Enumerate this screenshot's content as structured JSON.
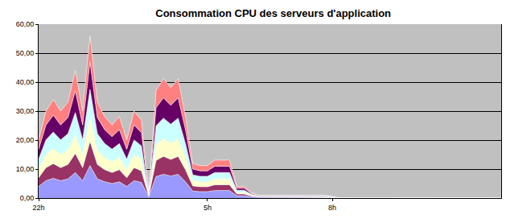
{
  "chart_data": {
    "type": "area",
    "title": "Consommation CPU des serveurs d'application",
    "stacked": true,
    "grid": true,
    "categories": [
      "22h",
      null,
      null,
      null,
      null,
      null,
      null,
      null,
      null,
      null,
      null,
      null,
      null,
      null,
      null,
      null,
      null,
      null,
      null,
      null,
      null,
      null,
      null,
      "5h",
      null,
      null,
      null,
      null,
      null,
      null,
      null,
      null,
      null,
      null,
      null,
      null,
      null,
      null,
      null,
      null,
      "8h",
      null,
      null,
      null,
      null,
      null,
      null,
      null,
      null,
      null,
      null,
      null,
      null,
      null,
      null,
      null,
      null,
      null,
      null,
      null,
      null,
      null,
      null,
      null
    ],
    "ylim": [
      0,
      60
    ],
    "yticks": [
      {
        "value": 0,
        "label": "0,00"
      },
      {
        "value": 10,
        "label": "10,00"
      },
      {
        "value": 20,
        "label": "20,00"
      },
      {
        "value": 30,
        "label": "30,00"
      },
      {
        "value": 40,
        "label": "40,00"
      },
      {
        "value": 50,
        "label": "50,00"
      },
      {
        "value": 60,
        "label": "60,00"
      }
    ],
    "series": [
      {
        "color": "#9999ff",
        "values": [
          4,
          6,
          6.8,
          6,
          6.6,
          8.8,
          6,
          11.2,
          6.6,
          5.6,
          5,
          5.6,
          4,
          6,
          5.4,
          0.4,
          7.4,
          8.2,
          7.6,
          8.2,
          5.6,
          2.4,
          2.2,
          2.2,
          2.6,
          2.6,
          2.6,
          0.8,
          0.8,
          0.4,
          0.2,
          0.2,
          0.2,
          0.2,
          0.2,
          0.2,
          0.2,
          0.2,
          0.2,
          0.2,
          0.1,
          0,
          0,
          0,
          0,
          0,
          0,
          0,
          0,
          0,
          0,
          0,
          0,
          0,
          0,
          0,
          0,
          0,
          0,
          0,
          0,
          0,
          0,
          0
        ]
      },
      {
        "color": "#993366",
        "values": [
          3,
          4.5,
          5.1,
          4.5,
          5,
          6.6,
          4.5,
          8.4,
          5,
          4.2,
          3.8,
          4.2,
          3,
          4.5,
          4,
          0.3,
          5.6,
          6.2,
          5.7,
          6.2,
          4.2,
          1.8,
          1.7,
          1.7,
          2,
          2,
          2,
          0.6,
          0.6,
          0.3,
          0.2,
          0.2,
          0.2,
          0.2,
          0.2,
          0.2,
          0.2,
          0.2,
          0.2,
          0.2,
          0.1,
          0,
          0,
          0,
          0,
          0,
          0,
          0,
          0,
          0,
          0,
          0,
          0,
          0,
          0,
          0,
          0,
          0,
          0,
          0,
          0,
          0,
          0,
          0
        ]
      },
      {
        "color": "#ffffcc",
        "values": [
          3,
          4.5,
          5.1,
          4.5,
          5,
          6.6,
          4.5,
          8.4,
          5,
          4.2,
          3.8,
          4.2,
          3,
          4.5,
          4,
          0.3,
          5.6,
          6.2,
          5.7,
          6.2,
          4.2,
          1.8,
          1.7,
          1.7,
          2,
          2,
          2,
          0.6,
          0.6,
          0.3,
          0.1,
          0.1,
          0.1,
          0.1,
          0.1,
          0.1,
          0.1,
          0.1,
          0.1,
          0.1,
          0.1,
          0,
          0,
          0,
          0,
          0,
          0,
          0,
          0,
          0,
          0,
          0,
          0,
          0,
          0,
          0,
          0,
          0,
          0,
          0,
          0,
          0,
          0,
          0
        ]
      },
      {
        "color": "#ccffff",
        "values": [
          3.4,
          5.1,
          5.8,
          5.1,
          5.6,
          7.5,
          5.1,
          9.5,
          5.6,
          4.8,
          4.3,
          4.8,
          3.4,
          5.1,
          4.6,
          0.3,
          6.3,
          7,
          6.5,
          7,
          4.8,
          2,
          1.9,
          1.9,
          2.2,
          2.2,
          2.2,
          0.7,
          0.7,
          0.3,
          0.2,
          0.2,
          0.2,
          0.2,
          0.2,
          0.2,
          0.2,
          0.2,
          0.2,
          0.2,
          0.1,
          0,
          0,
          0,
          0,
          0,
          0,
          0,
          0,
          0,
          0,
          0,
          0,
          0,
          0,
          0,
          0,
          0,
          0,
          0,
          0,
          0,
          0,
          0
        ]
      },
      {
        "color": "#660066",
        "values": [
          3.4,
          5.1,
          5.8,
          5.1,
          5.6,
          7.5,
          5.1,
          9.5,
          5.6,
          4.8,
          4.3,
          4.8,
          3.4,
          5.1,
          4.6,
          0.3,
          6.3,
          7,
          6.5,
          7,
          4.8,
          2,
          1.9,
          1.9,
          2.2,
          2.2,
          2.2,
          0.7,
          0.7,
          0.3,
          0.2,
          0.2,
          0.2,
          0.2,
          0.2,
          0.2,
          0.2,
          0.2,
          0.2,
          0.2,
          0.1,
          0,
          0,
          0,
          0,
          0,
          0,
          0,
          0,
          0,
          0,
          0,
          0,
          0,
          0,
          0,
          0,
          0,
          0,
          0,
          0,
          0,
          0,
          0
        ]
      },
      {
        "color": "#ff8080",
        "values": [
          3.2,
          4.8,
          5.4,
          4.8,
          5.3,
          7,
          4.8,
          9,
          5.3,
          4.5,
          4,
          4.5,
          3.2,
          4.8,
          4.3,
          0.3,
          5.9,
          6.6,
          6.1,
          6.6,
          4.5,
          1.9,
          1.8,
          1.8,
          2.1,
          2.1,
          2.1,
          0.6,
          0.6,
          0.3,
          0.1,
          0.1,
          0.1,
          0.1,
          0.1,
          0.1,
          0.1,
          0.1,
          0.1,
          0.1,
          0,
          0,
          0,
          0,
          0,
          0,
          0,
          0,
          0,
          0,
          0,
          0,
          0,
          0,
          0,
          0,
          0,
          0,
          0,
          0,
          0,
          0,
          0,
          0
        ]
      }
    ]
  }
}
